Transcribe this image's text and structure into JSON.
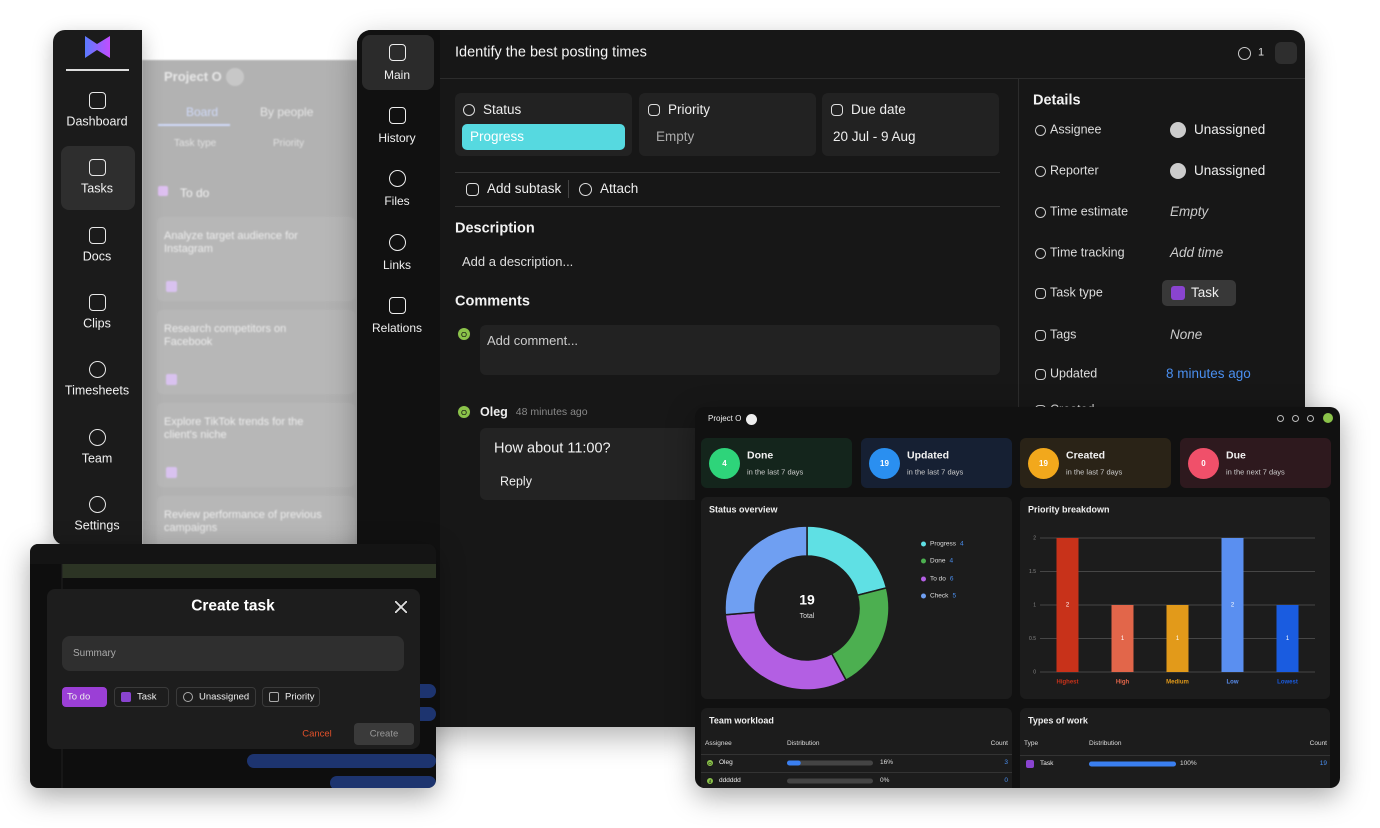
{
  "sidebar": {
    "items": [
      "Dashboard",
      "Tasks",
      "Docs",
      "Clips",
      "Timesheets",
      "Team",
      "Settings"
    ]
  },
  "board": {
    "project": "Project O",
    "tabs": [
      "Board",
      "By people"
    ],
    "filters": [
      "Task type",
      "Priority"
    ],
    "column": "To do",
    "cards": [
      "Analyze target audience for Instagram",
      "Research competitors on Facebook",
      "Explore TikTok trends for the client's niche",
      "Review performance of previous campaigns"
    ]
  },
  "task": {
    "nav": [
      "Main",
      "History",
      "Files",
      "Links",
      "Relations"
    ],
    "title": "Identify the best posting times",
    "watchers": 1,
    "status": {
      "label": "Status",
      "value": "Progress"
    },
    "priority": {
      "label": "Priority",
      "value": "Empty"
    },
    "due_date": {
      "label": "Due date",
      "value": "20 Jul - 9 Aug"
    },
    "actions": [
      "Add subtask",
      "Attach"
    ],
    "description": {
      "heading": "Description",
      "placeholder": "Add a description..."
    },
    "comments": {
      "heading": "Comments",
      "avatar": "O",
      "placeholder": "Add comment...",
      "items": [
        {
          "avatar": "O",
          "author": "Oleg",
          "time": "48 minutes ago",
          "text": "How about 11:00?",
          "reply": "Reply"
        }
      ]
    },
    "details": {
      "heading": "Details",
      "rows": [
        {
          "label": "Assignee",
          "value": "Unassigned"
        },
        {
          "label": "Reporter",
          "value": "Unassigned"
        },
        {
          "label": "Time estimate",
          "value": "Empty"
        },
        {
          "label": "Time tracking",
          "value": "Add time"
        },
        {
          "label": "Task type",
          "value": "Task"
        },
        {
          "label": "Tags",
          "value": "None"
        },
        {
          "label": "Updated",
          "value": "8 minutes ago"
        },
        {
          "label": "Created"
        }
      ]
    }
  },
  "dashboard": {
    "project": "Project O",
    "cards": [
      {
        "title": "Done",
        "count": 4,
        "subtitle": "in the last 7 days",
        "color": "#2ed47a",
        "background": "#14251c"
      },
      {
        "title": "Updated",
        "count": 19,
        "subtitle": "in the last 7 days",
        "color": "#2a8ff0",
        "background": "#162033"
      },
      {
        "title": "Created",
        "count": 19,
        "subtitle": "in the last 7 days",
        "color": "#f2a81c",
        "background": "#2a2317"
      },
      {
        "title": "Due",
        "count": 0,
        "subtitle": "in the next 7 days",
        "color": "#f0506a",
        "background": "#2e191e"
      }
    ],
    "status_overview": {
      "type": "donut",
      "title": "Status overview",
      "total": 19,
      "total_label": "Total",
      "segments": [
        {
          "name": "Progress",
          "value": 4,
          "color": "#5fe0e4"
        },
        {
          "name": "Done",
          "value": 4,
          "color": "#4caf50"
        },
        {
          "name": "To do",
          "value": 6,
          "color": "#b35fe3"
        },
        {
          "name": "Check",
          "value": 5,
          "color": "#6f9ff2"
        }
      ]
    },
    "priority_breakdown": {
      "type": "bar",
      "title": "Priority breakdown",
      "categories": [
        "Highest",
        "High",
        "Medium",
        "Low",
        "Lowest"
      ],
      "values": [
        2,
        1,
        1,
        2,
        1
      ],
      "colors": [
        "#c8321a",
        "#e2664a",
        "#e29a1a",
        "#5a8ff0",
        "#1a5ce0"
      ],
      "ylim": [
        0,
        2
      ],
      "yticks": [
        0,
        0.5,
        1,
        1.5,
        2
      ],
      "grid": true
    },
    "team_workload": {
      "title": "Team workload",
      "columns": [
        "Assignee",
        "Distribution",
        "Count"
      ],
      "rows": [
        {
          "avatar": "O",
          "name": "Oleg",
          "percent": 16,
          "percent_label": "16%",
          "count": 3
        },
        {
          "avatar": "d",
          "name": "dddddd",
          "percent": 0,
          "percent_label": "0%",
          "count": 0
        }
      ]
    },
    "types_of_work": {
      "title": "Types of work",
      "columns": [
        "Type",
        "Distribution",
        "Count"
      ],
      "rows": [
        {
          "name": "Task",
          "percent": 100,
          "percent_label": "100%",
          "count": 19
        }
      ]
    }
  },
  "create_task": {
    "title": "Create task",
    "summary_placeholder": "Summary",
    "chips": [
      "To do",
      "Task",
      "Unassigned",
      "Priority"
    ],
    "cancel": "Cancel",
    "submit": "Create"
  }
}
